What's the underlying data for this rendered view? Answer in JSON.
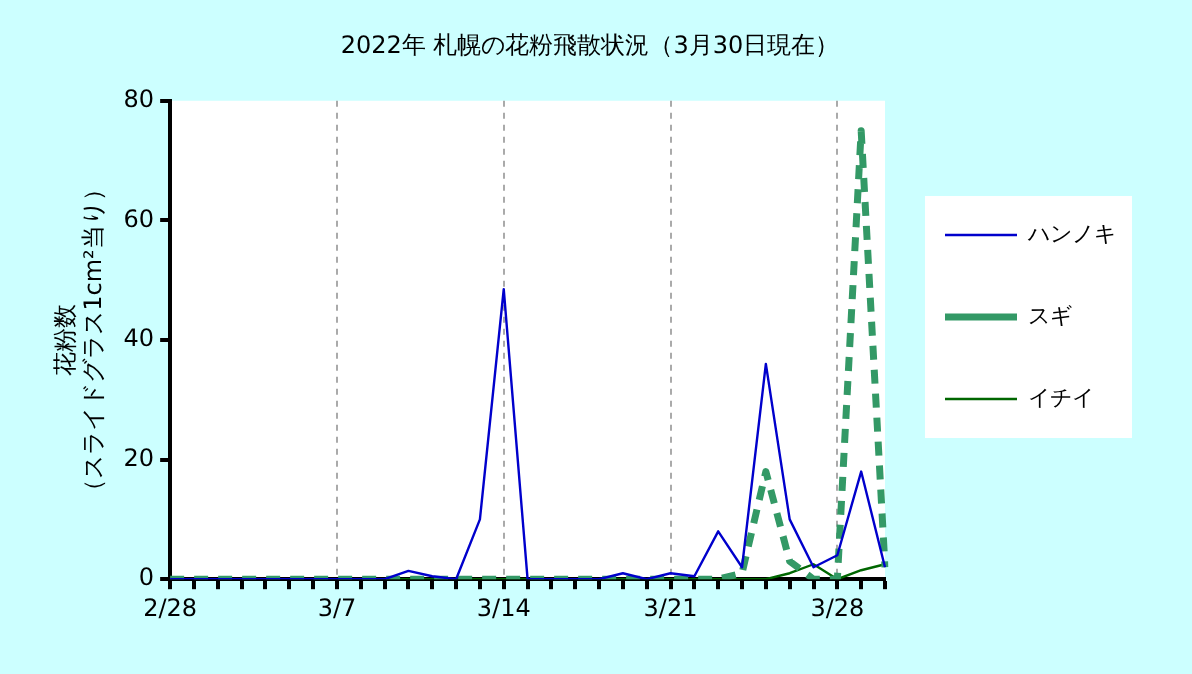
{
  "chart_data": {
    "type": "line",
    "title": "2022年 札幌の花粉飛散状況（3月30日現在）",
    "ylabel": "花粉数（スライドグラス1cm²当り）",
    "categories": [
      "2/28",
      null,
      null,
      null,
      null,
      null,
      null,
      "3/7",
      null,
      null,
      null,
      null,
      null,
      null,
      "3/14",
      null,
      null,
      null,
      null,
      null,
      null,
      "3/21",
      null,
      null,
      null,
      null,
      null,
      null,
      "3/28",
      null,
      null
    ],
    "series": [
      {
        "name": "ハンノキ",
        "color": "#0000cc",
        "line_style": "solid",
        "values": [
          0,
          0,
          0,
          0,
          0,
          0,
          0,
          0,
          0,
          0,
          1.4,
          0.5,
          0,
          10,
          48.5,
          0,
          0,
          0,
          0,
          1,
          0,
          1,
          0.5,
          8,
          2,
          36,
          10,
          2,
          4,
          18,
          2
        ]
      },
      {
        "name": "スギ",
        "color": "#339966",
        "line_style": "dashed",
        "values": [
          0,
          0,
          0,
          0,
          0,
          0,
          0,
          0,
          0,
          0,
          0,
          0,
          0,
          0,
          0,
          0,
          0,
          0,
          0,
          0,
          0,
          0,
          0,
          0,
          1,
          18,
          3,
          0,
          0,
          75,
          2
        ]
      },
      {
        "name": "イチイ",
        "color": "#006600",
        "line_style": "solid",
        "values": [
          null,
          null,
          null,
          null,
          null,
          null,
          0,
          0,
          0,
          0,
          0,
          0,
          0,
          0,
          0,
          0,
          0,
          0,
          0,
          0,
          0,
          0,
          0,
          0,
          0,
          0,
          1,
          2.5,
          0,
          1.5,
          2.5
        ]
      }
    ],
    "ylim": [
      0,
      80
    ],
    "yticks": [
      0,
      20,
      40,
      60,
      80
    ],
    "grid": "x",
    "legend": "right",
    "marker": "none"
  }
}
